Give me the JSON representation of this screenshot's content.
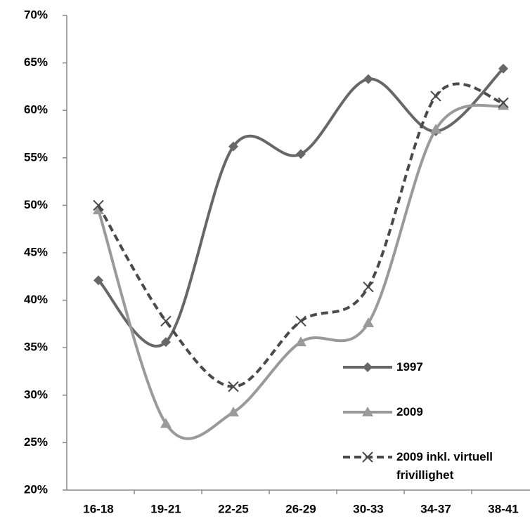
{
  "chart_data": {
    "type": "line",
    "smooth": true,
    "legend": "lower right",
    "categories": [
      "16-18",
      "19-21",
      "22-25",
      "26-29",
      "30-33",
      "34-37",
      "38-41"
    ],
    "series": [
      {
        "name": "1997",
        "color": "#676767",
        "marker": "diamond",
        "dashed": false,
        "values": [
          42.1,
          35.6,
          56.2,
          55.4,
          63.3,
          57.8,
          64.4
        ]
      },
      {
        "name": "2009",
        "color": "#9a9a9a",
        "marker": "triangle",
        "dashed": false,
        "values": [
          49.5,
          27.0,
          28.2,
          35.6,
          37.6,
          58.0,
          60.5
        ]
      },
      {
        "name": "2009 inkl. virtuell frivillighet",
        "color": "#4a4a4a",
        "marker": "x",
        "dashed": true,
        "values": [
          50.0,
          37.8,
          30.9,
          37.8,
          41.4,
          61.5,
          60.8
        ]
      }
    ],
    "ylim": [
      20,
      70
    ],
    "yticks": [
      {
        "value": 20,
        "label": "20%"
      },
      {
        "value": 25,
        "label": "25%"
      },
      {
        "value": 30,
        "label": "30%"
      },
      {
        "value": 35,
        "label": "35%"
      },
      {
        "value": 40,
        "label": "40%"
      },
      {
        "value": 45,
        "label": "45%"
      },
      {
        "value": 50,
        "label": "50%"
      },
      {
        "value": 55,
        "label": "55%"
      },
      {
        "value": 60,
        "label": "60%"
      },
      {
        "value": 65,
        "label": "65%"
      },
      {
        "value": 70,
        "label": "70%"
      }
    ],
    "grid": false
  }
}
